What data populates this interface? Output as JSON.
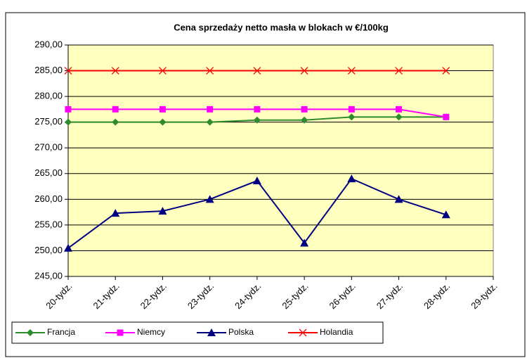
{
  "chart_data": {
    "type": "line",
    "title": "Cena sprzedaży netto masła w blokach w €/100kg",
    "categories": [
      "20-tydz.",
      "21-tydz.",
      "22-tydz.",
      "23-tydz.",
      "24-tydz.",
      "25-tydz.",
      "26-tydz.",
      "27-tydz.",
      "28-tydz.",
      "29-tydz."
    ],
    "series": [
      {
        "name": "Francja",
        "color": "#2e8b2e",
        "marker": "diamond",
        "values": [
          275,
          275,
          275,
          275,
          275.4,
          275.4,
          276,
          276,
          276,
          null
        ]
      },
      {
        "name": "Niemcy",
        "color": "#ff00ff",
        "marker": "square",
        "values": [
          277.5,
          277.5,
          277.5,
          277.5,
          277.5,
          277.5,
          277.5,
          277.5,
          276,
          null
        ]
      },
      {
        "name": "Polska",
        "color": "#000080",
        "marker": "triangle",
        "values": [
          250.5,
          257.3,
          257.7,
          260,
          263.6,
          251.5,
          264,
          260,
          257,
          null
        ]
      },
      {
        "name": "Holandia",
        "color": "#ff0000",
        "marker": "x",
        "values": [
          285,
          285,
          285,
          285,
          285,
          285,
          285,
          285,
          285,
          null
        ]
      }
    ],
    "ylim": [
      245,
      290
    ],
    "yticks": [
      {
        "value": 245,
        "label": "245,00"
      },
      {
        "value": 250,
        "label": "250,00"
      },
      {
        "value": 255,
        "label": "255,00"
      },
      {
        "value": 260,
        "label": "260,00"
      },
      {
        "value": 265,
        "label": "265,00"
      },
      {
        "value": 270,
        "label": "270,00"
      },
      {
        "value": 275,
        "label": "275,00"
      },
      {
        "value": 280,
        "label": "280,00"
      },
      {
        "value": 285,
        "label": "285,00"
      },
      {
        "value": 290,
        "label": "290,00"
      }
    ],
    "grid": true,
    "plot_background": "#ffffc0",
    "legend": "bottom"
  }
}
